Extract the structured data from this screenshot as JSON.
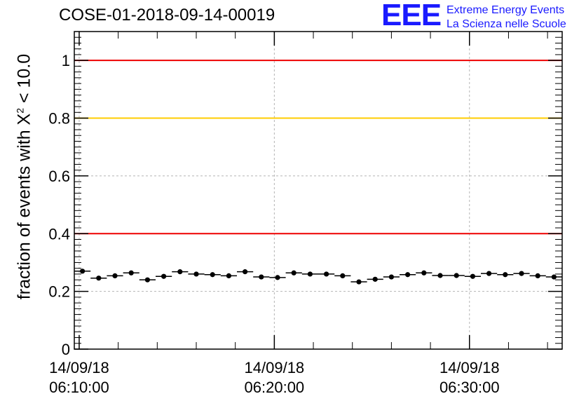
{
  "title": "COSE-01-2018-09-14-00019",
  "logo": {
    "mark": "EEE",
    "line1": "Extreme Energy Events",
    "line2": "La Scienza nelle Scuole",
    "color": "#1a1aff"
  },
  "chart_data": {
    "type": "scatter",
    "ylabel_prefix": "fraction of events with ",
    "ylabel_chi": "X",
    "ylabel_sup": "2",
    "ylabel_suffix": " < 10.0",
    "ylim": [
      0,
      1.1
    ],
    "yticks": [
      {
        "v": 0,
        "label": "0"
      },
      {
        "v": 0.2,
        "label": "0.2"
      },
      {
        "v": 0.4,
        "label": "0.4"
      },
      {
        "v": 0.6,
        "label": "0.6"
      },
      {
        "v": 0.8,
        "label": "0.8"
      },
      {
        "v": 1,
        "label": "1"
      }
    ],
    "xlim": [
      "06:09:45",
      "06:34:45"
    ],
    "xticks": [
      {
        "t": "06:10:00",
        "date": "14/09/18",
        "time": "06:10:00"
      },
      {
        "t": "06:20:00",
        "date": "14/09/18",
        "time": "06:20:00"
      },
      {
        "t": "06:30:00",
        "date": "14/09/18",
        "time": "06:30:00"
      }
    ],
    "grid": true,
    "reference_lines": [
      {
        "y": 1.0,
        "color": "#ee0000"
      },
      {
        "y": 0.8,
        "color": "#ffcc00"
      },
      {
        "y": 0.4,
        "color": "#ee0000"
      }
    ],
    "series": [
      {
        "bin_width_s": 50,
        "x": [
          "06:10:10",
          "06:11:00",
          "06:11:50",
          "06:12:40",
          "06:13:30",
          "06:14:20",
          "06:15:10",
          "06:16:00",
          "06:16:50",
          "06:17:40",
          "06:18:30",
          "06:19:20",
          "06:20:10",
          "06:21:00",
          "06:21:50",
          "06:22:40",
          "06:23:30",
          "06:24:20",
          "06:25:10",
          "06:26:00",
          "06:26:50",
          "06:27:40",
          "06:28:30",
          "06:29:20",
          "06:30:10",
          "06:31:00",
          "06:31:50",
          "06:32:40",
          "06:33:30",
          "06:34:20"
        ],
        "y": [
          0.27,
          0.246,
          0.254,
          0.264,
          0.24,
          0.252,
          0.268,
          0.26,
          0.258,
          0.254,
          0.268,
          0.25,
          0.248,
          0.264,
          0.26,
          0.26,
          0.254,
          0.233,
          0.242,
          0.25,
          0.258,
          0.264,
          0.255,
          0.255,
          0.252,
          0.262,
          0.258,
          0.262,
          0.254,
          0.25
        ]
      }
    ]
  }
}
